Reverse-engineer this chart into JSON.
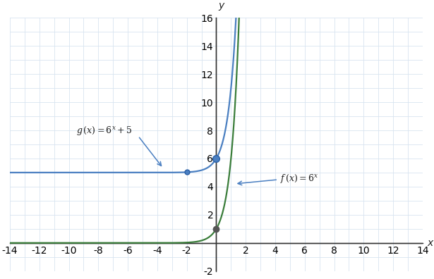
{
  "xlabel": "x",
  "ylabel": "y",
  "xlim": [
    -14,
    14
  ],
  "ylim": [
    -2,
    16
  ],
  "xticks": [
    -14,
    -12,
    -10,
    -8,
    -6,
    -4,
    -2,
    2,
    4,
    6,
    8,
    10,
    12,
    14
  ],
  "yticks": [
    -2,
    2,
    4,
    6,
    8,
    10,
    12,
    14,
    16
  ],
  "f_color": "#3a7d3a",
  "g_color": "#4a7fc1",
  "bg_color": "#ffffff",
  "grid_color": "#d8e4f0",
  "axis_color": "#333333",
  "f_point_color": "#555555",
  "g_point_color": "#2a5fa5"
}
